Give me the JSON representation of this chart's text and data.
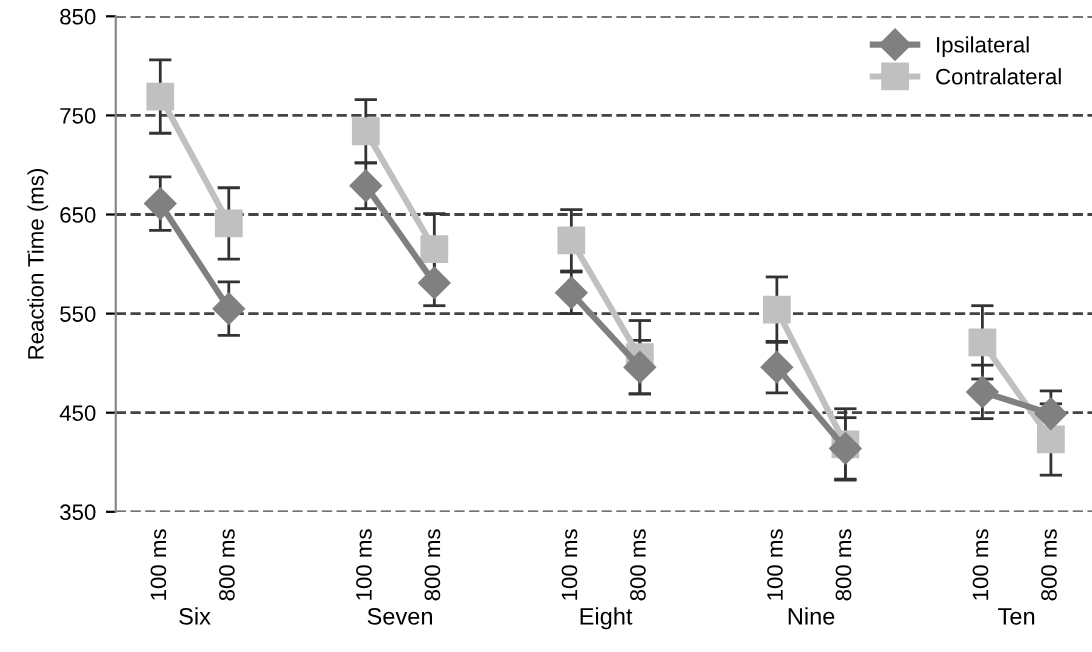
{
  "chart_data": {
    "type": "line",
    "ylabel": "Reaction Time (ms)",
    "categories": [
      "100 ms",
      "800 ms",
      null,
      "100 ms",
      "800 ms",
      null,
      "100 ms",
      "800 ms",
      null,
      "100 ms",
      "800 ms",
      null,
      "100 ms",
      "800 ms"
    ],
    "series": [
      {
        "name": "Ipsilateral",
        "color": "#808080",
        "marker": "diamond",
        "values": [
          661,
          555,
          null,
          679,
          581,
          null,
          571,
          496,
          null,
          496,
          414,
          null,
          471,
          449
        ],
        "errors": [
          27,
          27,
          null,
          23,
          23,
          null,
          21,
          27,
          null,
          26,
          31,
          null,
          27,
          23
        ]
      },
      {
        "name": "Contralateral",
        "color": "#c0c0c0",
        "marker": "square",
        "values": [
          769,
          641,
          null,
          734,
          615,
          null,
          624,
          506,
          null,
          554,
          418,
          null,
          521,
          423
        ],
        "errors": [
          37,
          36,
          null,
          32,
          36,
          null,
          31,
          37,
          null,
          33,
          36,
          null,
          37,
          36
        ]
      }
    ],
    "ylim": [
      350,
      850
    ],
    "yticks": [
      350,
      450,
      550,
      650,
      750,
      850
    ],
    "grid": "y",
    "legend": "top right",
    "annotations": [
      "Six",
      "Seven",
      "Eight",
      "Nine",
      "Ten"
    ]
  }
}
